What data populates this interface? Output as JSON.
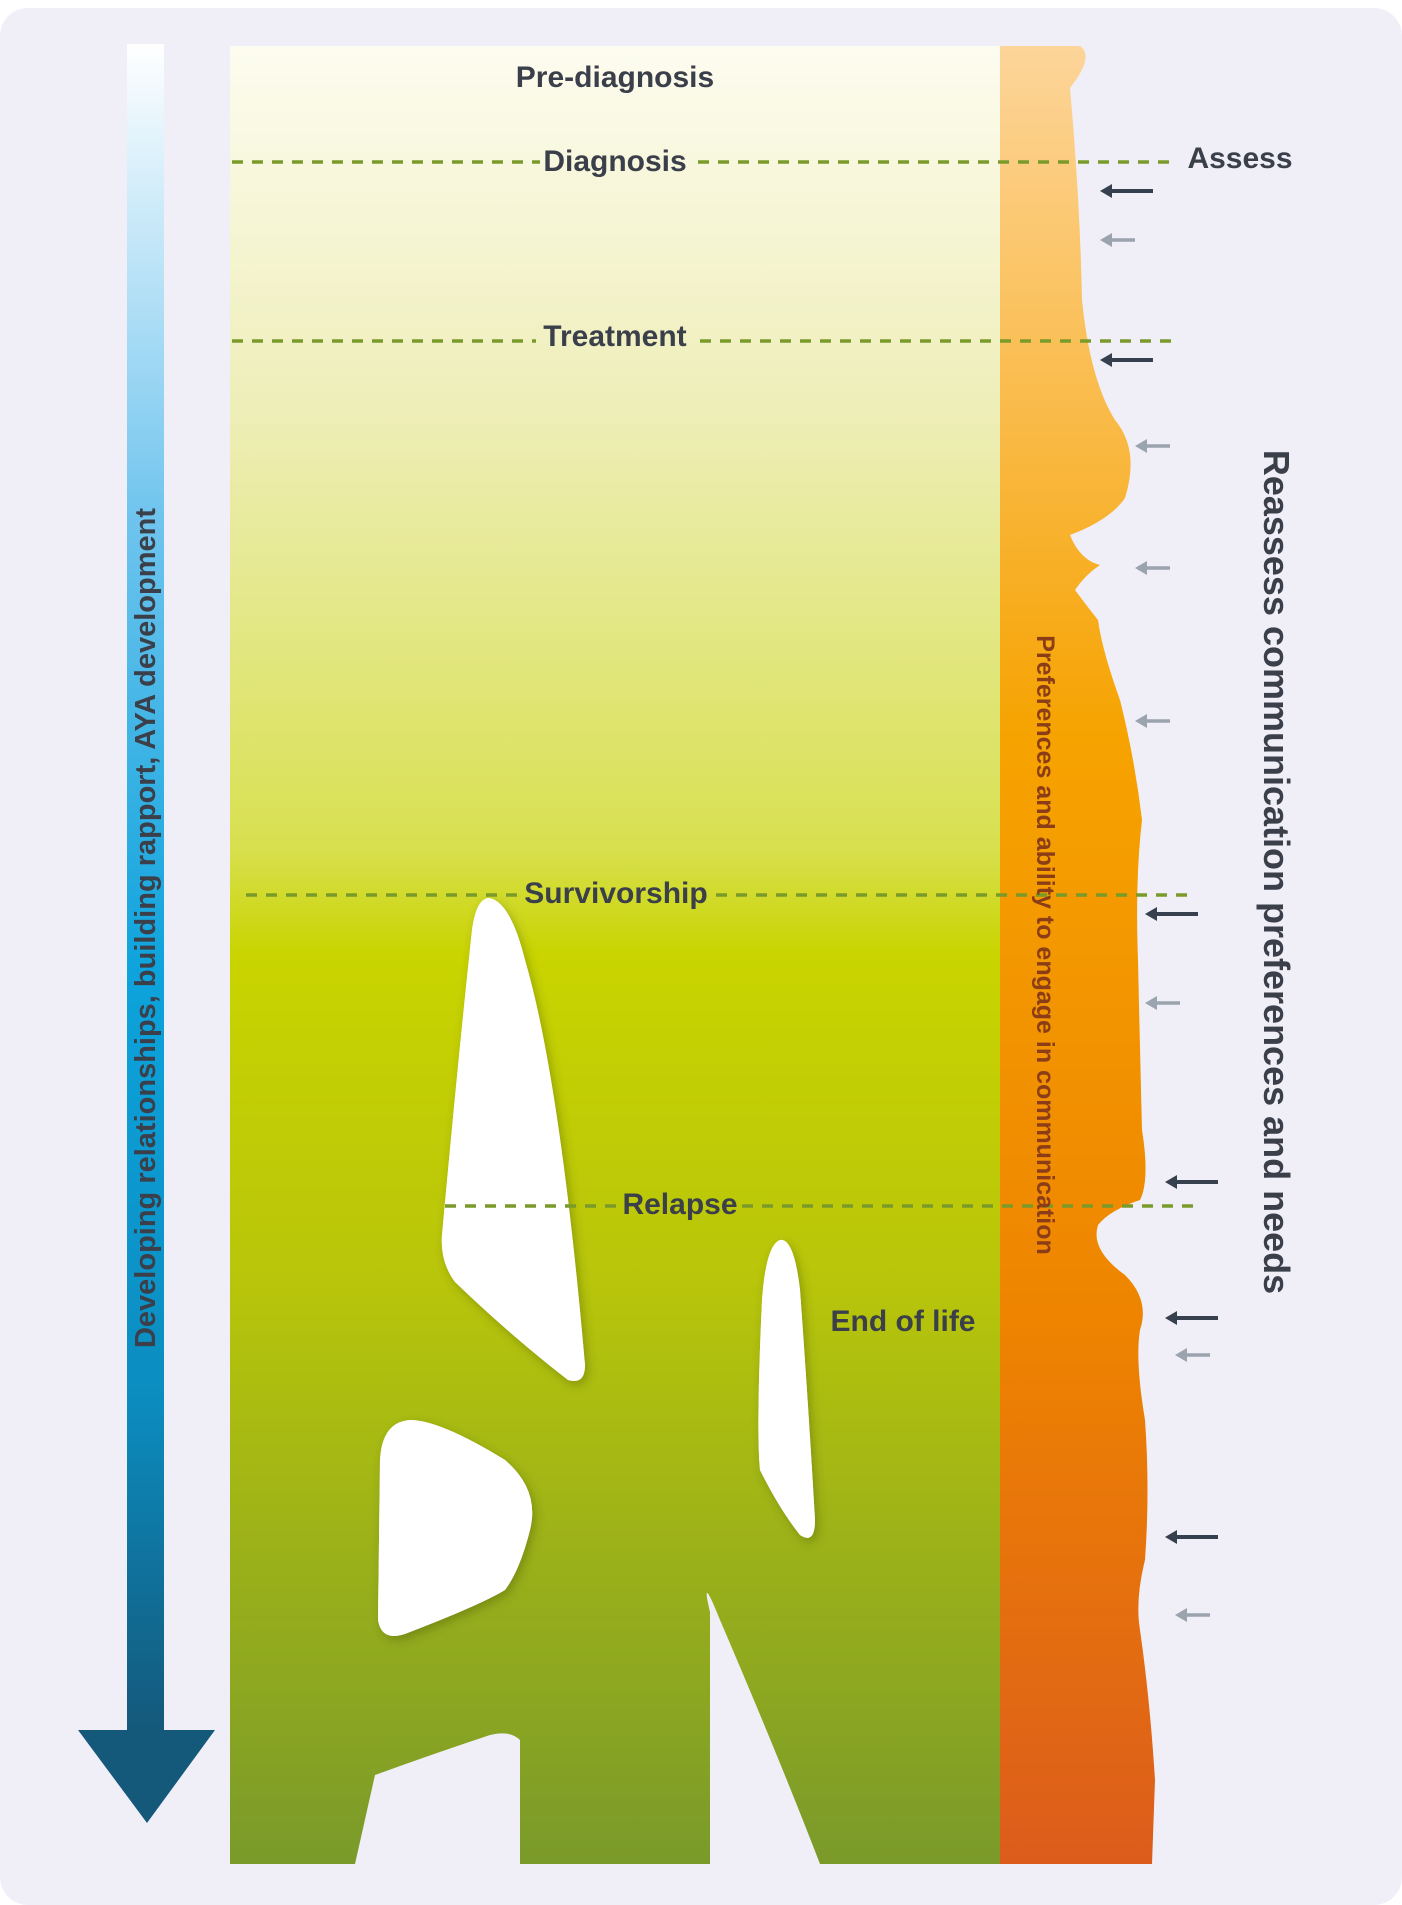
{
  "stages": {
    "pre_diagnosis": "Pre-diagnosis",
    "diagnosis": "Diagnosis",
    "treatment": "Treatment",
    "survivorship": "Survivorship",
    "relapse": "Relapse",
    "end_of_life": "End of life"
  },
  "left_axis_label": "Developing relationships, building rapport, AYA development",
  "orange_band_label": "Preferences and ability to engage in communication",
  "right_label": "Reassess communication preferences and needs",
  "assess_label": "Assess",
  "arrows": [
    {
      "emphasis": "dark"
    },
    {
      "emphasis": "light"
    },
    {
      "emphasis": "dark"
    },
    {
      "emphasis": "light"
    },
    {
      "emphasis": "light"
    },
    {
      "emphasis": "light"
    },
    {
      "emphasis": "dark"
    },
    {
      "emphasis": "light"
    },
    {
      "emphasis": "dark"
    },
    {
      "emphasis": "dark"
    },
    {
      "emphasis": "light"
    },
    {
      "emphasis": "dark"
    },
    {
      "emphasis": "light"
    }
  ],
  "colors": {
    "background_panel": "#f0eff8",
    "green_top": "#fdfcee",
    "green_mid": "#c9d400",
    "green_bottom": "#7a9a2a",
    "orange_top": "#fdd595",
    "orange_mid": "#f6a300",
    "orange_bottom": "#de601a",
    "blue_top": "#ffffff",
    "blue_mid": "#0da3dc",
    "blue_bottom": "#135c7e",
    "dashed_line": "#7a9a2a",
    "arrow_dark": "#36404f",
    "arrow_light": "#9aa3ae",
    "text": "#3a3f4a",
    "orange_text": "#8a3d17"
  }
}
